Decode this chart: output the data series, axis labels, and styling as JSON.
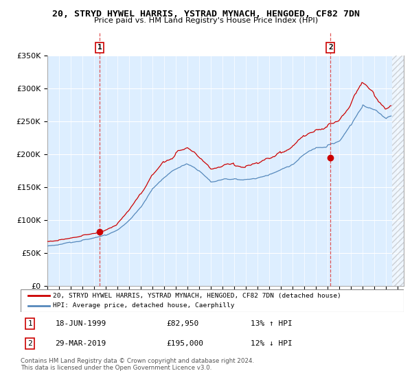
{
  "title": "20, STRYD HYWEL HARRIS, YSTRAD MYNACH, HENGOED, CF82 7DN",
  "subtitle": "Price paid vs. HM Land Registry's House Price Index (HPI)",
  "legend_label_red": "20, STRYD HYWEL HARRIS, YSTRAD MYNACH, HENGOED, CF82 7DN (detached house)",
  "legend_label_blue": "HPI: Average price, detached house, Caerphilly",
  "annotation1_date": "18-JUN-1999",
  "annotation1_price": "£82,950",
  "annotation1_hpi": "13% ↑ HPI",
  "annotation2_date": "29-MAR-2019",
  "annotation2_price": "£195,000",
  "annotation2_hpi": "12% ↓ HPI",
  "footer": "Contains HM Land Registry data © Crown copyright and database right 2024.\nThis data is licensed under the Open Government Licence v3.0.",
  "ylim": [
    0,
    350000
  ],
  "yticks": [
    0,
    50000,
    100000,
    150000,
    200000,
    250000,
    300000,
    350000
  ],
  "ytick_labels": [
    "£0",
    "£50K",
    "£100K",
    "£150K",
    "£200K",
    "£250K",
    "£300K",
    "£350K"
  ],
  "color_red": "#cc0000",
  "color_blue": "#5588bb",
  "color_bg": "#ddeeff",
  "color_annotation_line": "#dd4444",
  "sale1_x": 1999.46,
  "sale1_y": 82950,
  "sale2_x": 2019.23,
  "sale2_y": 195000,
  "xlim_start": 1995,
  "xlim_end": 2025.5,
  "hatch_start": 2024.5
}
